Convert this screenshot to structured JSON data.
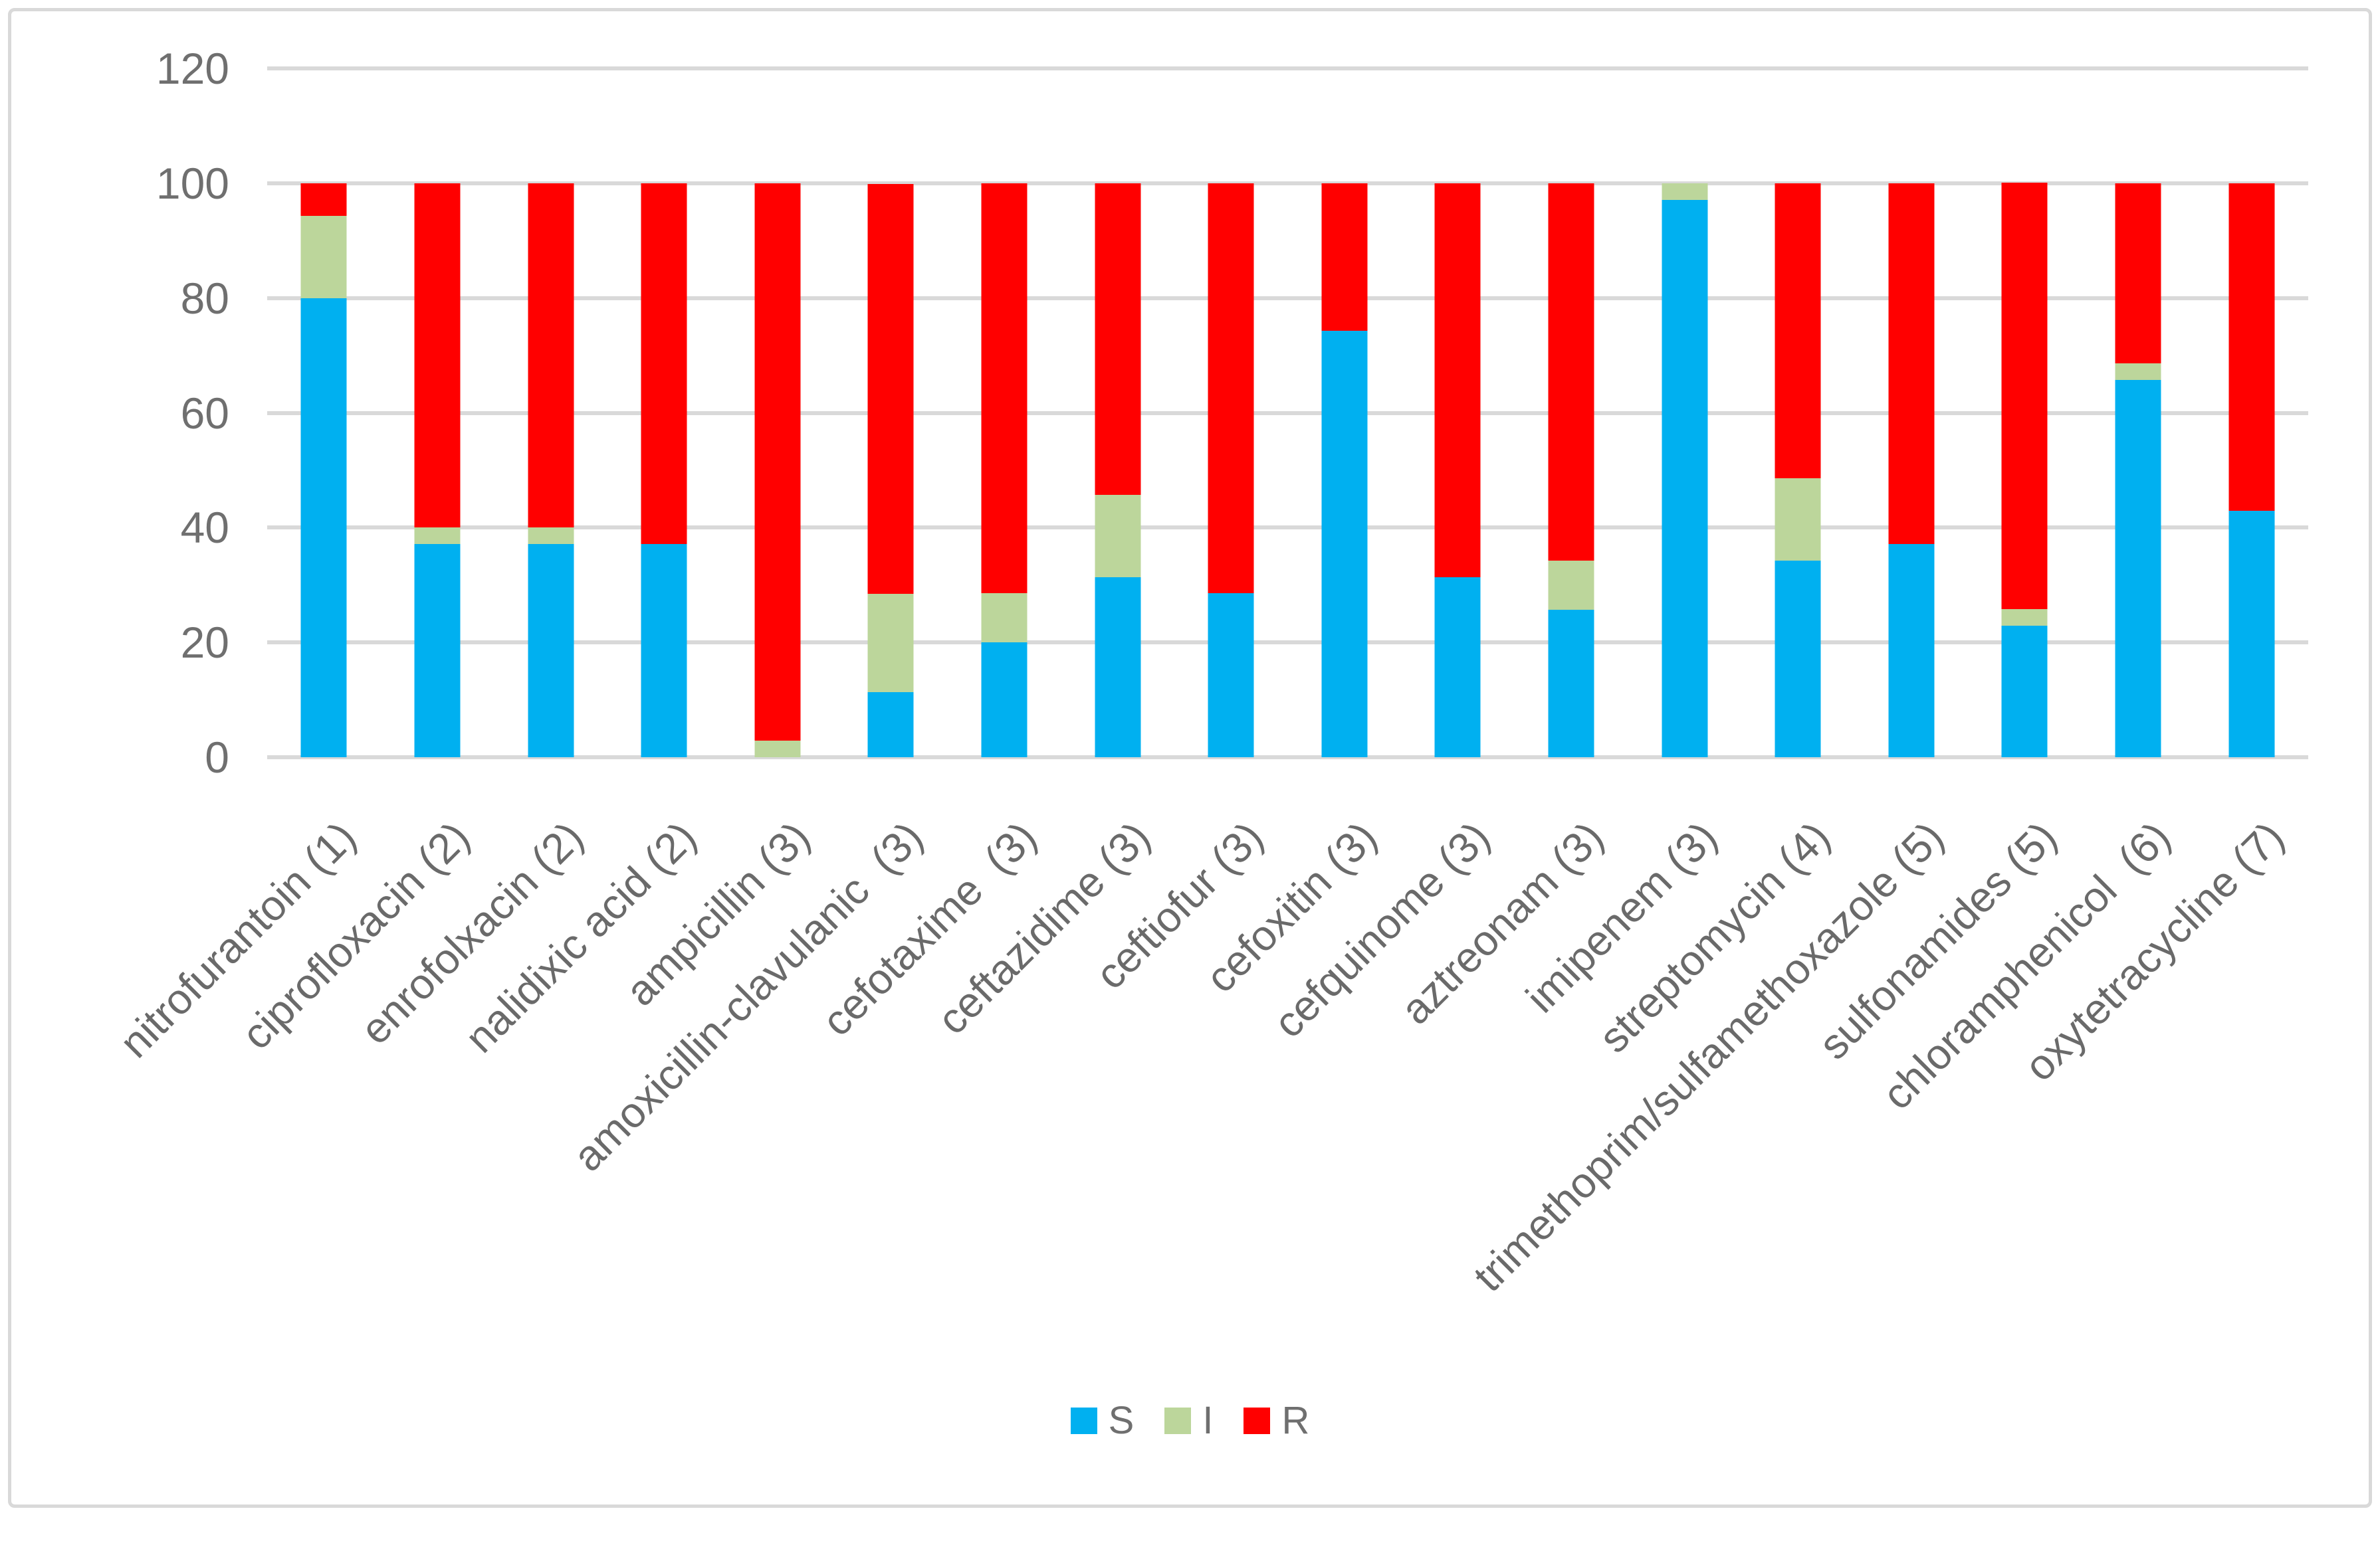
{
  "figure": {
    "background_color": "#FFFFFF",
    "border_color": "#D9D9D9",
    "gridline_color": "#D9D9D9",
    "text_color": "#6F6F6F"
  },
  "chart_data": {
    "type": "bar",
    "stacked": true,
    "title": "",
    "xlabel": "",
    "ylabel": "",
    "ylim": [
      0,
      120
    ],
    "yticks": [
      0,
      20,
      40,
      60,
      80,
      100,
      120
    ],
    "grid": "horizontal",
    "legend_position": "bottom",
    "x_label_rotation_deg": 45,
    "categories": [
      "nitrofurantoin (1)",
      "ciprofloxacin (2)",
      "enrofolxacin (2)",
      "nalidixic acid (2)",
      "ampicillin (3)",
      "amoxicillin-clavulanic  (3)",
      "cefotaxime  (3)",
      "ceftazidime (3)",
      "ceftiofur (3)",
      "cefoxitin (3)",
      "cefquinome (3)",
      "aztreonam (3)",
      "imipenem (3)",
      "streptomycin (4)",
      "trimethoprim/sulfamethoxazole (5)",
      "sulfonamides (5)",
      "chloramphenicol  (6)",
      "oxytetracycline (7)"
    ],
    "series": [
      {
        "name": "S",
        "color": "#00B0F0",
        "values": [
          80,
          37.1,
          37.1,
          37.1,
          0,
          11.4,
          20,
          31.4,
          28.6,
          74.3,
          31.4,
          25.7,
          97.1,
          34.3,
          37.1,
          22.9,
          65.7,
          42.9
        ]
      },
      {
        "name": "I",
        "color": "#BCD69B",
        "values": [
          14.3,
          2.9,
          2.9,
          0,
          2.9,
          17.1,
          8.6,
          14.3,
          0,
          0,
          0,
          8.6,
          2.9,
          14.3,
          0,
          2.9,
          2.9,
          0
        ]
      },
      {
        "name": "R",
        "color": "#FF0000",
        "values": [
          5.7,
          60,
          60,
          62.9,
          97.1,
          71.4,
          71.4,
          54.3,
          71.4,
          25.7,
          68.6,
          65.7,
          0,
          51.4,
          62.9,
          74.3,
          31.4,
          57.1
        ]
      }
    ]
  },
  "legend": {
    "items": [
      {
        "label": "S",
        "color": "#00B0F0"
      },
      {
        "label": "I",
        "color": "#BCD69B"
      },
      {
        "label": "R",
        "color": "#FF0000"
      }
    ]
  }
}
